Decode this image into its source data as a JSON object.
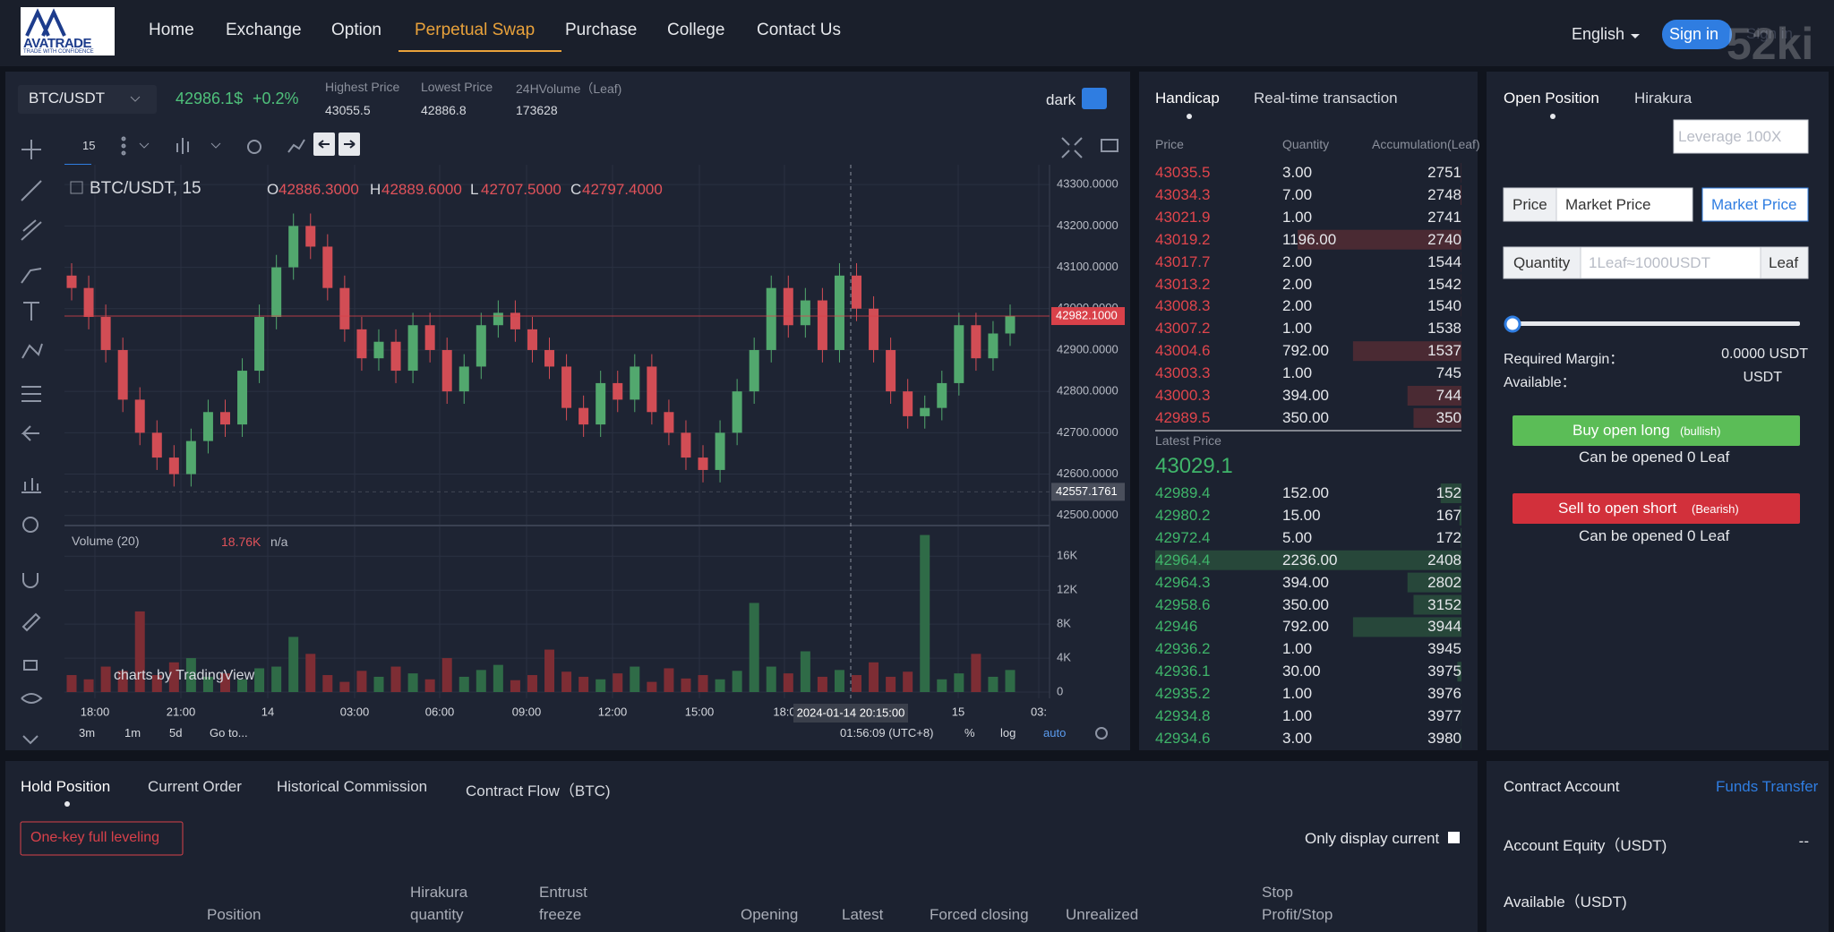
{
  "nav": {
    "logo_title": "AVATRADE",
    "logo_tagline": "TRADE WITH CONFIDENCE",
    "items": [
      "Home",
      "Exchange",
      "Option",
      "Perpetual Swap",
      "Purchase",
      "College",
      "Contact Us"
    ],
    "active": "Perpetual Swap",
    "language": "English",
    "sign_in": "Sign in",
    "sign_in_ghost": "Sign in",
    "watermark": "52ki"
  },
  "ticker": {
    "pair": "BTC/USDT",
    "price": "42986.1$",
    "change": "+0.2%",
    "stats": [
      {
        "label": "Highest Price",
        "value": "43055.5"
      },
      {
        "label": "Lowest Price",
        "value": "42886.8"
      },
      {
        "label": "24HVolume（Leaf)",
        "value": "173628"
      }
    ],
    "theme": "dark",
    "interval": "15"
  },
  "chart_data": {
    "type": "candlestick",
    "title": "BTC/USDT, 15",
    "legend": [
      {
        "key": "O",
        "value": "42886.3000"
      },
      {
        "key": "H",
        "value": "42889.6000"
      },
      {
        "key": "L",
        "value": "42707.5000"
      },
      {
        "key": "C",
        "value": "42797.4000"
      }
    ],
    "up_color": "#52a86e",
    "down_color": "#d24d55",
    "grid": true,
    "open": [
      43080,
      43050,
      42980,
      42900,
      42780,
      42700,
      42640,
      42600,
      42680,
      42750,
      42720,
      42850,
      42980,
      43100,
      43200,
      43150,
      43050,
      42950,
      42880,
      42920,
      42850,
      42960,
      42900,
      42800,
      42860,
      42960,
      42990,
      42950,
      42900,
      42860,
      42760,
      42720,
      42820,
      42780,
      42860,
      42750,
      42700,
      42640,
      42610,
      42700,
      42800,
      42900,
      43050,
      42960,
      43020,
      42900,
      43080,
      43000,
      42900,
      42800,
      42740,
      42760,
      42820,
      42960,
      42880,
      42940
    ],
    "high": [
      43110,
      43080,
      43010,
      42930,
      42810,
      42730,
      42670,
      42710,
      42780,
      42780,
      42880,
      43010,
      43130,
      43230,
      43230,
      43180,
      43080,
      42980,
      42950,
      42950,
      42990,
      42990,
      42930,
      42890,
      42990,
      43020,
      43020,
      42980,
      42930,
      42890,
      42790,
      42850,
      42850,
      42890,
      42890,
      42780,
      42730,
      42670,
      42730,
      42830,
      42930,
      43080,
      43080,
      43050,
      43050,
      43110,
      43110,
      43030,
      42930,
      42830,
      42790,
      42850,
      42990,
      42990,
      42970,
      43010
    ],
    "low": [
      43020,
      42950,
      42870,
      42750,
      42670,
      42610,
      42570,
      42570,
      42650,
      42690,
      42690,
      42820,
      42950,
      43070,
      43120,
      43020,
      42920,
      42850,
      42850,
      42820,
      42820,
      42870,
      42770,
      42770,
      42830,
      42930,
      42920,
      42870,
      42830,
      42730,
      42690,
      42690,
      42750,
      42750,
      42720,
      42670,
      42610,
      42580,
      42580,
      42670,
      42770,
      42870,
      42930,
      42930,
      42870,
      42870,
      42970,
      42870,
      42770,
      42710,
      42710,
      42730,
      42790,
      42850,
      42850,
      42910
    ],
    "close": [
      43050,
      42980,
      42900,
      42780,
      42700,
      42640,
      42600,
      42680,
      42750,
      42720,
      42850,
      42980,
      43100,
      43200,
      43150,
      43050,
      42950,
      42880,
      42920,
      42850,
      42960,
      42900,
      42800,
      42860,
      42960,
      42990,
      42950,
      42900,
      42860,
      42760,
      42720,
      42820,
      42780,
      42860,
      42750,
      42700,
      42640,
      42610,
      42700,
      42800,
      42900,
      43050,
      42960,
      43020,
      42900,
      43080,
      43000,
      42900,
      42800,
      42740,
      42760,
      42820,
      42960,
      42880,
      42940,
      42982
    ],
    "ylim": [
      42480,
      43335
    ],
    "yticks": [
      {
        "value": 42500,
        "label": "42500.0000"
      },
      {
        "value": 42600,
        "label": "42600.0000"
      },
      {
        "value": 42700,
        "label": "42700.0000"
      },
      {
        "value": 42800,
        "label": "42800.0000"
      },
      {
        "value": 42900,
        "label": "42900.0000"
      },
      {
        "value": 43000,
        "label": "43000.0000"
      },
      {
        "value": 43100,
        "label": "43100.0000"
      },
      {
        "value": 43200,
        "label": "43200.0000"
      },
      {
        "value": 43300,
        "label": "43300.0000"
      }
    ],
    "price_tags": [
      {
        "value": 42982.1,
        "label": "42982.1000",
        "color": "#d9414a"
      },
      {
        "value": 42557.1761,
        "label": "42557.1761",
        "color": "#4a4f5c"
      }
    ],
    "volume": {
      "title": "Volume (20)",
      "last": "18.76K",
      "ma": "n/a",
      "values": [
        2000,
        1500,
        3000,
        2500,
        9500,
        2000,
        3500,
        4000,
        1800,
        2200,
        1500,
        2800,
        3000,
        6500,
        4500,
        2000,
        1200,
        2500,
        1800,
        3000,
        2200,
        1500,
        4000,
        1800,
        2600,
        3200,
        1400,
        2000,
        5000,
        2400,
        1800,
        1500,
        2200,
        3000,
        1200,
        2800,
        1600,
        2000,
        1500,
        2500,
        10500,
        3000,
        2200,
        4800,
        1800,
        2600,
        2000,
        3500,
        1800,
        2400,
        18500,
        1500,
        2200,
        4500,
        1800,
        2600
      ],
      "ylim": [
        0,
        19300
      ],
      "yticks": [
        0,
        {
          "value": 4000,
          "label": "4K"
        },
        {
          "value": 8000,
          "label": "8K"
        },
        {
          "value": 12000,
          "label": "12K"
        },
        {
          "value": 16000,
          "label": "16K"
        }
      ]
    },
    "x_labels": [
      "18:00",
      "21:00",
      "14",
      "03:00",
      "06:00",
      "09:00",
      "12:00",
      "15:00",
      "18:0",
      "15",
      "03:"
    ],
    "crosshair": "2024-01-14 20:15:00",
    "credit": "charts by TradingView",
    "ranges": [
      "3m",
      "1m",
      "5d"
    ],
    "goto": "Go to...",
    "clock": "01:56:09 (UTC+8)",
    "scale_options": [
      "%",
      "log",
      "auto"
    ]
  },
  "order_book": {
    "tabs": [
      "Handicap",
      "Real-time transaction"
    ],
    "columns": [
      "Price",
      "Quantity",
      "Accumulation(Leaf)"
    ],
    "asks": [
      {
        "price": "43035.5",
        "quantity": {
          "value": 3,
          "label": "3.00"
        },
        "accumulation": 2751
      },
      {
        "price": "43034.3",
        "quantity": {
          "value": 7,
          "label": "7.00"
        },
        "accumulation": 2748
      },
      {
        "price": "43021.9",
        "quantity": {
          "value": 1,
          "label": "1.00"
        },
        "accumulation": 2741
      },
      {
        "price": "43019.2",
        "quantity": {
          "value": 1196,
          "label": "1196.00"
        },
        "accumulation": 2740
      },
      {
        "price": "43017.7",
        "quantity": {
          "value": 2,
          "label": "2.00"
        },
        "accumulation": 1544
      },
      {
        "price": "43013.2",
        "quantity": {
          "value": 2,
          "label": "2.00"
        },
        "accumulation": 1542
      },
      {
        "price": "43008.3",
        "quantity": {
          "value": 2,
          "label": "2.00"
        },
        "accumulation": 1540
      },
      {
        "price": "43007.2",
        "quantity": {
          "value": 1,
          "label": "1.00"
        },
        "accumulation": 1538
      },
      {
        "price": "43004.6",
        "quantity": {
          "value": 792,
          "label": "792.00"
        },
        "accumulation": 1537
      },
      {
        "price": "43003.3",
        "quantity": {
          "value": 1,
          "label": "1.00"
        },
        "accumulation": 745
      },
      {
        "price": "43000.3",
        "quantity": {
          "value": 394,
          "label": "394.00"
        },
        "accumulation": 744
      },
      {
        "price": "42989.5",
        "quantity": {
          "value": 350,
          "label": "350.00"
        },
        "accumulation": 350
      }
    ],
    "latest_label": "Latest Price",
    "latest_price": "43029.1",
    "bids": [
      {
        "price": "42989.4",
        "quantity": {
          "value": 152,
          "label": "152.00"
        },
        "accumulation": 152
      },
      {
        "price": "42980.2",
        "quantity": {
          "value": 15,
          "label": "15.00"
        },
        "accumulation": 167
      },
      {
        "price": "42972.4",
        "quantity": {
          "value": 5,
          "label": "5.00"
        },
        "accumulation": 172
      },
      {
        "price": "42964.4",
        "quantity": {
          "value": 2236,
          "label": "2236.00"
        },
        "accumulation": 2408
      },
      {
        "price": "42964.3",
        "quantity": {
          "value": 394,
          "label": "394.00"
        },
        "accumulation": 2802
      },
      {
        "price": "42958.6",
        "quantity": {
          "value": 350,
          "label": "350.00"
        },
        "accumulation": 3152
      },
      {
        "price": "42946",
        "quantity": {
          "value": 792,
          "label": "792.00"
        },
        "accumulation": 3944
      },
      {
        "price": "42936.2",
        "quantity": {
          "value": 1,
          "label": "1.00"
        },
        "accumulation": 3945
      },
      {
        "price": "42936.1",
        "quantity": {
          "value": 30,
          "label": "30.00"
        },
        "accumulation": 3975
      },
      {
        "price": "42935.2",
        "quantity": {
          "value": 1,
          "label": "1.00"
        },
        "accumulation": 3976
      },
      {
        "price": "42934.8",
        "quantity": {
          "value": 1,
          "label": "1.00"
        },
        "accumulation": 3977
      },
      {
        "price": "42934.6",
        "quantity": {
          "value": 3,
          "label": "3.00"
        },
        "accumulation": 3980
      }
    ]
  },
  "trade_panel": {
    "tabs": [
      "Open Position",
      "Hirakura"
    ],
    "leverage_placeholder": "Leverage 100X",
    "price_label": "Price",
    "price_input": "Market Price",
    "market_button": "Market Price",
    "quantity_label": "Quantity",
    "quantity_placeholder": "1Leaf≈1000USDT",
    "unit": "Leaf",
    "required_margin_label": "Required Margin：",
    "required_margin": "0.0000 USDT",
    "available_label": "Available：",
    "available": "USDT",
    "buy": "Buy open long",
    "buy_note": "(bullish)",
    "buy_capacity": "Can be opened 0 Leaf",
    "sell": "Sell to open short",
    "sell_note": "(Bearish)",
    "sell_capacity": "Can be opened 0 Leaf"
  },
  "positions": {
    "tabs": [
      "Hold Position",
      "Current Order",
      "Historical Commission",
      "Contract Flow（BTC)"
    ],
    "full_leveling": "One-key full leveling",
    "only_current": "Only display current",
    "columns": [
      "Position",
      "Hirakura quantity",
      "Entrust freeze",
      "Opening",
      "Latest",
      "Forced closing",
      "Unrealized",
      "Stop Profit/Stop"
    ]
  },
  "account": {
    "title": "Contract Account",
    "transfer": "Funds Transfer",
    "equity_label": "Account Equity（USDT)",
    "equity": "--",
    "available_label": "Available（USDT)"
  }
}
